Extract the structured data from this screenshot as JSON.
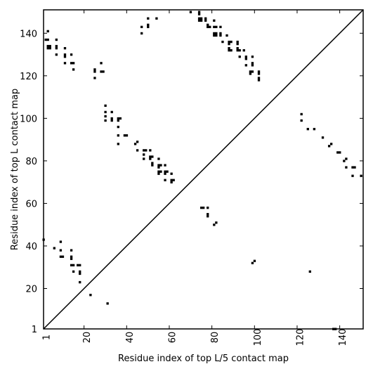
{
  "chart_data": {
    "type": "scatter",
    "title": "",
    "xlabel": "Residue index of top L/5 contact map",
    "ylabel": "Residue index of top L contact map",
    "xlim": [
      1,
      151
    ],
    "ylim": [
      1,
      151
    ],
    "x_ticks": [
      1,
      20,
      40,
      60,
      80,
      100,
      120,
      140
    ],
    "y_ticks": [
      1,
      20,
      40,
      60,
      80,
      100,
      120,
      140
    ],
    "x_tick_labels": [
      "1",
      "20",
      "40",
      "60",
      "80",
      "100",
      "120",
      "140"
    ],
    "y_tick_labels": [
      "1",
      "20",
      "40",
      "60",
      "80",
      "100",
      "120",
      "140"
    ],
    "diagonal": [
      [
        1,
        1
      ],
      [
        151,
        151
      ]
    ],
    "grid": false,
    "marker_color": "#000000",
    "series": [
      {
        "values": [
          [
            1,
            43
          ],
          [
            6,
            39
          ],
          [
            9,
            42
          ],
          [
            9,
            38
          ],
          [
            9,
            35
          ],
          [
            10,
            35
          ],
          [
            14,
            38
          ],
          [
            14,
            35
          ],
          [
            14,
            34
          ],
          [
            14,
            31
          ],
          [
            15,
            31
          ],
          [
            15,
            28
          ],
          [
            17,
            31
          ],
          [
            18,
            31
          ],
          [
            18,
            28
          ],
          [
            18,
            27
          ],
          [
            18,
            23
          ],
          [
            23,
            17
          ],
          [
            31,
            13
          ],
          [
            75,
            58
          ],
          [
            76,
            58
          ],
          [
            78,
            58
          ],
          [
            78,
            55
          ],
          [
            78,
            54
          ],
          [
            81,
            50
          ],
          [
            82,
            51
          ],
          [
            99,
            32
          ],
          [
            100,
            33
          ],
          [
            126,
            28
          ],
          [
            137,
            1
          ],
          [
            138,
            1
          ]
        ]
      },
      {
        "values": [
          [
            30,
            101
          ],
          [
            30,
            106
          ],
          [
            30,
            103
          ],
          [
            30,
            99
          ],
          [
            33,
            99
          ],
          [
            33,
            100
          ],
          [
            33,
            103
          ],
          [
            36,
            99
          ],
          [
            36,
            100
          ],
          [
            37,
            100
          ],
          [
            36,
            96
          ],
          [
            36,
            92
          ],
          [
            36,
            88
          ],
          [
            39,
            92
          ],
          [
            40,
            92
          ],
          [
            44,
            88
          ],
          [
            45,
            89
          ],
          [
            45,
            85
          ],
          [
            48,
            85
          ],
          [
            48,
            83
          ],
          [
            48,
            81
          ],
          [
            49,
            85
          ],
          [
            51,
            85
          ],
          [
            51,
            82
          ],
          [
            51,
            81
          ],
          [
            52,
            82
          ],
          [
            52,
            79
          ],
          [
            52,
            78
          ],
          [
            55,
            81
          ],
          [
            55,
            78
          ],
          [
            55,
            77
          ],
          [
            55,
            75
          ],
          [
            55,
            74
          ],
          [
            56,
            78
          ],
          [
            56,
            75
          ],
          [
            58,
            78
          ],
          [
            58,
            75
          ],
          [
            58,
            74
          ],
          [
            59,
            75
          ],
          [
            58,
            71
          ],
          [
            61,
            74
          ],
          [
            61,
            71
          ],
          [
            61,
            70
          ],
          [
            62,
            71
          ],
          [
            122,
            102
          ],
          [
            122,
            99
          ],
          [
            125,
            95
          ],
          [
            128,
            95
          ],
          [
            132,
            91
          ],
          [
            135,
            87
          ],
          [
            136,
            88
          ],
          [
            139,
            84
          ],
          [
            140,
            84
          ],
          [
            142,
            80
          ],
          [
            143,
            81
          ],
          [
            143,
            77
          ],
          [
            146,
            77
          ],
          [
            147,
            77
          ],
          [
            146,
            73
          ],
          [
            150,
            73
          ]
        ]
      },
      {
        "values": [
          [
            2,
            137
          ],
          [
            3,
            137
          ],
          [
            3,
            141
          ],
          [
            3,
            134
          ],
          [
            3,
            133
          ],
          [
            4,
            134
          ],
          [
            4,
            133
          ],
          [
            7,
            137
          ],
          [
            7,
            134
          ],
          [
            7,
            133
          ],
          [
            7,
            130
          ],
          [
            11,
            133
          ],
          [
            11,
            130
          ],
          [
            11,
            129
          ],
          [
            11,
            126
          ],
          [
            14,
            126
          ],
          [
            14,
            130
          ],
          [
            15,
            126
          ],
          [
            15,
            123
          ],
          [
            25,
            123
          ],
          [
            25,
            122
          ],
          [
            25,
            119
          ],
          [
            28,
            122
          ],
          [
            28,
            126
          ],
          [
            29,
            122
          ],
          [
            47,
            143
          ],
          [
            47,
            140
          ],
          [
            50,
            147
          ],
          [
            50,
            144
          ],
          [
            50,
            143
          ],
          [
            54,
            147
          ],
          [
            70,
            150
          ],
          [
            74,
            150
          ],
          [
            74,
            149
          ],
          [
            74,
            147
          ],
          [
            74,
            146
          ],
          [
            75,
            147
          ],
          [
            75,
            146
          ],
          [
            77,
            147
          ],
          [
            77,
            146
          ],
          [
            78,
            144
          ],
          [
            78,
            143
          ],
          [
            79,
            143
          ],
          [
            81,
            146
          ],
          [
            81,
            143
          ],
          [
            81,
            140
          ],
          [
            81,
            139
          ],
          [
            82,
            143
          ],
          [
            82,
            140
          ],
          [
            82,
            139
          ],
          [
            84,
            140
          ],
          [
            84,
            139
          ],
          [
            84,
            143
          ],
          [
            85,
            136
          ],
          [
            87,
            139
          ],
          [
            88,
            136
          ],
          [
            88,
            135
          ],
          [
            88,
            133
          ],
          [
            88,
            132
          ],
          [
            89,
            136
          ],
          [
            89,
            132
          ],
          [
            92,
            136
          ],
          [
            92,
            135
          ],
          [
            92,
            133
          ],
          [
            92,
            132
          ],
          [
            93,
            132
          ],
          [
            93,
            129
          ],
          [
            95,
            132
          ],
          [
            96,
            129
          ],
          [
            96,
            128
          ],
          [
            96,
            125
          ],
          [
            98,
            122
          ],
          [
            98,
            121
          ],
          [
            99,
            122
          ],
          [
            99,
            126
          ],
          [
            99,
            125
          ],
          [
            99,
            129
          ],
          [
            102,
            122
          ],
          [
            102,
            121
          ],
          [
            102,
            119
          ],
          [
            102,
            118
          ]
        ]
      }
    ]
  }
}
